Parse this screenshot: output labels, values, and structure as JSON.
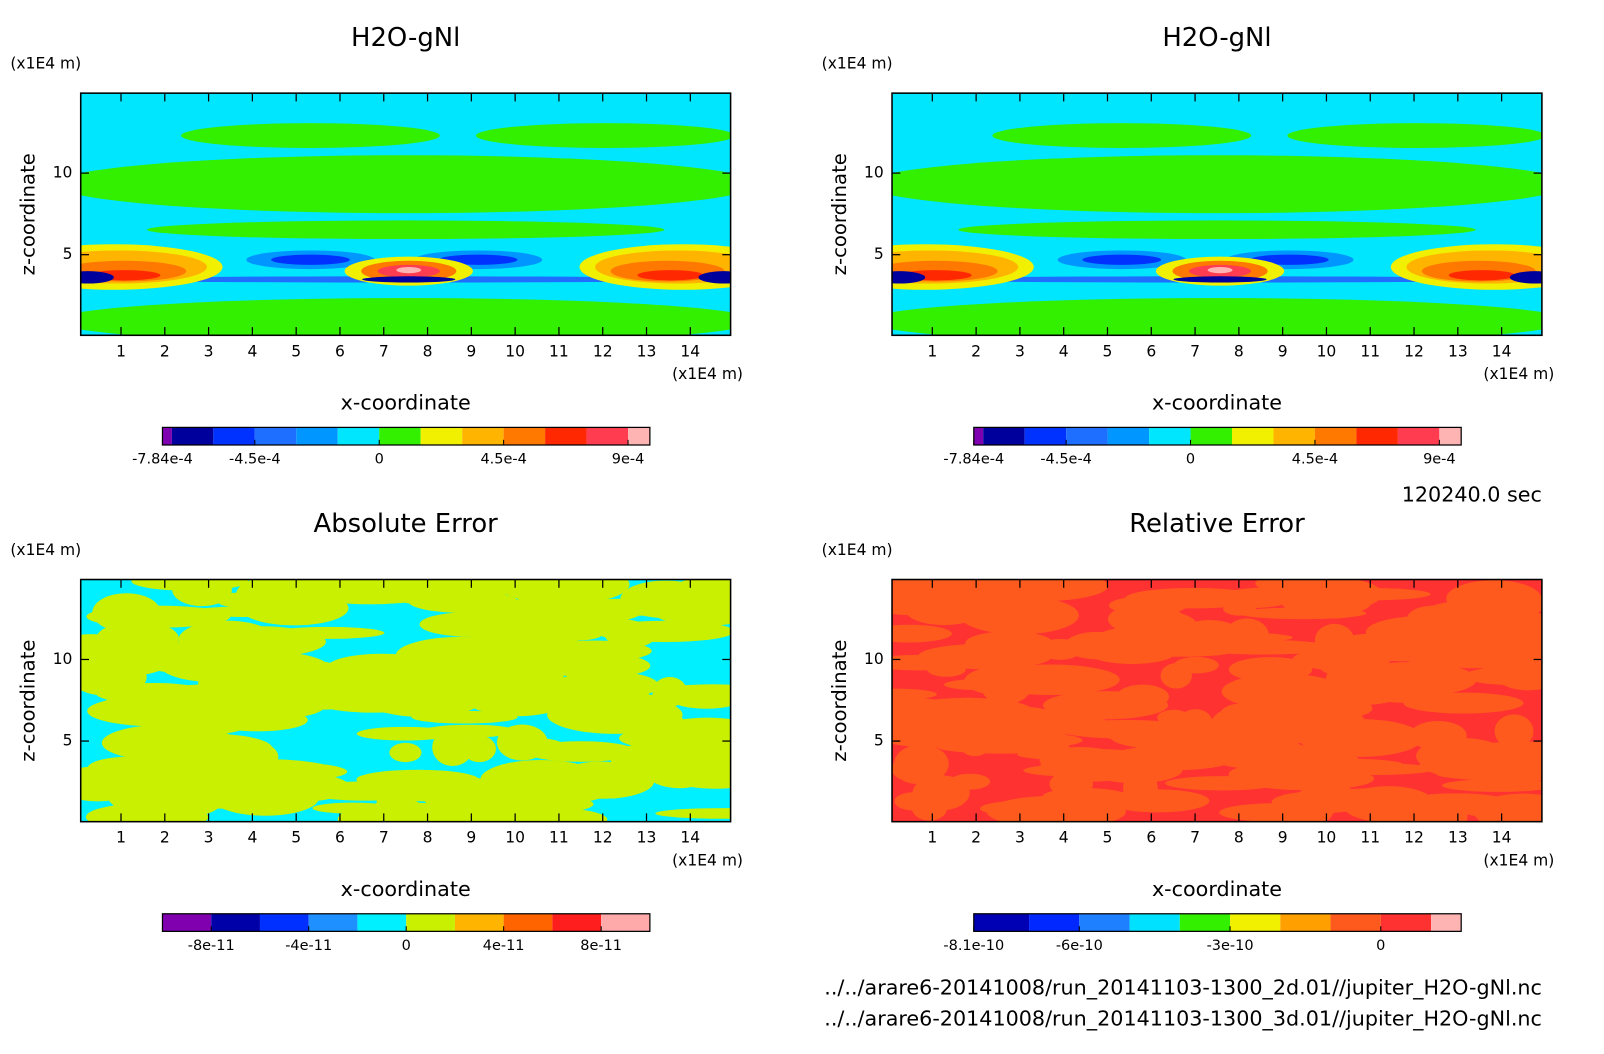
{
  "chart_data": [
    {
      "type": "contour",
      "title": "H2O-gNl",
      "x_label": "x-coordinate",
      "y_label": "z-coordinate",
      "x_unit": "(x1E4 m)",
      "y_unit": "(x1E4 m)",
      "xlim": [
        0.08,
        14.92
      ],
      "ylim": [
        0.06,
        14.9
      ],
      "xticks": [
        1,
        2,
        3,
        4,
        5,
        6,
        7,
        8,
        9,
        10,
        11,
        12,
        13,
        14
      ],
      "yticks": [
        5,
        10
      ],
      "colorbar": {
        "lim": [
          -0.000784,
          0.000979
        ],
        "levels": [
          -0.000784,
          -0.00075,
          -0.0006,
          -0.00045,
          -0.0003,
          -0.00015,
          0,
          0.00015,
          0.0003,
          0.00045,
          0.0006,
          0.00075,
          0.0009,
          0.000979
        ],
        "colors": [
          "#7f00b0",
          "#00009c",
          "#0032ff",
          "#1e6eff",
          "#0096ff",
          "#00e6ff",
          "#32f000",
          "#f0f000",
          "#ffb400",
          "#ff7800",
          "#ff2800",
          "#ff3c50",
          "#ffb4b4"
        ],
        "ticks": [
          {
            "value": -0.000784,
            "label": "-7.84e-4"
          },
          {
            "value": -0.00045,
            "label": "-4.5e-4"
          },
          0,
          {
            "value": 0.00045,
            "label": "4.5e-4"
          },
          {
            "value": 0.0009,
            "label": "9e-4"
          }
        ]
      }
    },
    {
      "type": "contour",
      "title": "H2O-gNl",
      "x_label": "x-coordinate",
      "y_label": "z-coordinate",
      "x_unit": "(x1E4 m)",
      "y_unit": "(x1E4 m)",
      "xlim": [
        0.08,
        14.92
      ],
      "ylim": [
        0.06,
        14.9
      ],
      "xticks": [
        1,
        2,
        3,
        4,
        5,
        6,
        7,
        8,
        9,
        10,
        11,
        12,
        13,
        14
      ],
      "yticks": [
        5,
        10
      ],
      "colorbar": {
        "lim": [
          -0.000784,
          0.000979
        ],
        "levels": [
          -0.000784,
          -0.00075,
          -0.0006,
          -0.00045,
          -0.0003,
          -0.00015,
          0,
          0.00015,
          0.0003,
          0.00045,
          0.0006,
          0.00075,
          0.0009,
          0.000979
        ],
        "colors": [
          "#7f00b0",
          "#00009c",
          "#0032ff",
          "#1e6eff",
          "#0096ff",
          "#00e6ff",
          "#32f000",
          "#f0f000",
          "#ffb400",
          "#ff7800",
          "#ff2800",
          "#ff3c50",
          "#ffb4b4"
        ],
        "ticks": [
          {
            "value": -0.000784,
            "label": "-7.84e-4"
          },
          {
            "value": -0.00045,
            "label": "-4.5e-4"
          },
          0,
          {
            "value": 0.00045,
            "label": "4.5e-4"
          },
          {
            "value": 0.0009,
            "label": "9e-4"
          }
        ]
      }
    },
    {
      "type": "noise",
      "title": "Absolute Error",
      "x_label": "x-coordinate",
      "y_label": "z-coordinate",
      "x_unit": "(x1E4 m)",
      "y_unit": "(x1E4 m)",
      "xlim": [
        0.08,
        14.92
      ],
      "ylim": [
        0.06,
        14.9
      ],
      "xticks": [
        1,
        2,
        3,
        4,
        5,
        6,
        7,
        8,
        9,
        10,
        11,
        12,
        13,
        14
      ],
      "yticks": [
        5,
        10
      ],
      "colorbar": {
        "lim": [
          -1e-10,
          1e-10
        ],
        "levels": [
          -1e-10,
          -8e-11,
          -6e-11,
          -4e-11,
          -2e-11,
          0,
          2e-11,
          4e-11,
          6e-11,
          8e-11,
          1e-10
        ],
        "colors": [
          "#8000b0",
          "#0000a8",
          "#0030ff",
          "#1e90ff",
          "#00f0ff",
          "#c8f000",
          "#ffb400",
          "#ff6400",
          "#ff1e1e",
          "#ffaaaa"
        ],
        "ticks": [
          {
            "value": -8e-11,
            "label": "-8e-11"
          },
          {
            "value": -4e-11,
            "label": "-4e-11"
          },
          0,
          {
            "value": 4e-11,
            "label": "4e-11"
          },
          {
            "value": 8e-11,
            "label": "8e-11"
          }
        ]
      }
    },
    {
      "type": "noise",
      "title": "Relative Error",
      "x_label": "x-coordinate",
      "y_label": "z-coordinate",
      "x_unit": "(x1E4 m)",
      "y_unit": "(x1E4 m)",
      "xlim": [
        0.08,
        14.92
      ],
      "ylim": [
        0.06,
        14.9
      ],
      "xticks": [
        1,
        2,
        3,
        4,
        5,
        6,
        7,
        8,
        9,
        10,
        11,
        12,
        13,
        14
      ],
      "yticks": [
        5,
        10
      ],
      "colorbar": {
        "lim": [
          -8.1e-10,
          1.6e-10
        ],
        "levels": [
          -8.1e-10,
          -7e-10,
          -6e-10,
          -5e-10,
          -4e-10,
          -3e-10,
          -2e-10,
          -1e-10,
          0,
          1e-10,
          1.6e-10
        ],
        "colors": [
          "#0000b4",
          "#0028ff",
          "#1e80ff",
          "#00e0ff",
          "#32f000",
          "#f0f000",
          "#ffa000",
          "#ff5a1e",
          "#ff3232",
          "#ffb4b4"
        ],
        "ticks": [
          {
            "value": -8.1e-10,
            "label": "-8.1e-10"
          },
          {
            "value": -6e-10,
            "label": "-6e-10"
          },
          {
            "value": -3e-10,
            "label": "-3e-10"
          },
          0
        ]
      }
    }
  ],
  "time": "120240.0 sec",
  "files": [
    "../../arare6-20141008/run_20141103-1300_2d.01//jupiter_H2O-gNl.nc",
    "../../arare6-20141008/run_20141103-1300_3d.01//jupiter_H2O-gNl.nc"
  ]
}
